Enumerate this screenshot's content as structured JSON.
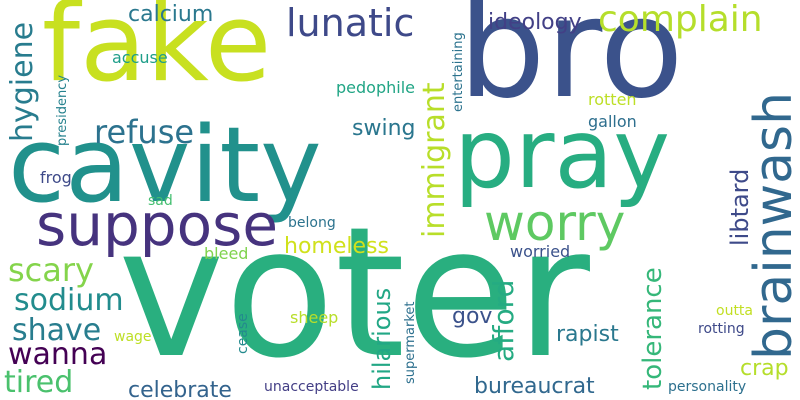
{
  "word_cloud": {
    "background": "#ffffff",
    "words": [
      {
        "text": "voter",
        "color": "#29af7f"
      },
      {
        "text": "bro",
        "color": "#3b528b"
      },
      {
        "text": "fake",
        "color": "#c8e020"
      },
      {
        "text": "cavity",
        "color": "#21918c"
      },
      {
        "text": "pray",
        "color": "#27ad81"
      },
      {
        "text": "suppose",
        "color": "#46337e"
      },
      {
        "text": "worry",
        "color": "#5ec962"
      },
      {
        "text": "brainwash",
        "color": "#31688e"
      },
      {
        "text": "complain",
        "color": "#b5de2b"
      },
      {
        "text": "lunatic",
        "color": "#3e4989"
      },
      {
        "text": "refuse",
        "color": "#2c728e"
      },
      {
        "text": "immigrant",
        "color": "#b8de29"
      },
      {
        "text": "hygiene",
        "color": "#287c8e"
      },
      {
        "text": "scary",
        "color": "#84d44b"
      },
      {
        "text": "sodium",
        "color": "#228c8d"
      },
      {
        "text": "shave",
        "color": "#287d8e"
      },
      {
        "text": "wanna",
        "color": "#440154"
      },
      {
        "text": "tired",
        "color": "#4ac16d"
      },
      {
        "text": "homeless",
        "color": "#d0e11c"
      },
      {
        "text": "afford",
        "color": "#25ab82"
      },
      {
        "text": "tolerance",
        "color": "#35b779"
      },
      {
        "text": "hilarious",
        "color": "#22a785"
      },
      {
        "text": "libtard",
        "color": "#3e4a89"
      },
      {
        "text": "celebrate",
        "color": "#33638d"
      },
      {
        "text": "ideology",
        "color": "#424086"
      },
      {
        "text": "calcium",
        "color": "#2a788e"
      },
      {
        "text": "swing",
        "color": "#2a768e"
      },
      {
        "text": "rapist",
        "color": "#2a788e"
      },
      {
        "text": "bureaucrat",
        "color": "#31688e"
      },
      {
        "text": "crap",
        "color": "#b5de2b"
      },
      {
        "text": "gov",
        "color": "#3b528b"
      },
      {
        "text": "accuse",
        "color": "#1f9e89"
      },
      {
        "text": "pedophile",
        "color": "#21a585"
      },
      {
        "text": "rotten",
        "color": "#bddf26"
      },
      {
        "text": "gallon",
        "color": "#2e6f8e"
      },
      {
        "text": "frog",
        "color": "#3e4a89"
      },
      {
        "text": "sad",
        "color": "#44bf70"
      },
      {
        "text": "belong",
        "color": "#2c738e"
      },
      {
        "text": "bleed",
        "color": "#7fd34e"
      },
      {
        "text": "worried",
        "color": "#3b528b"
      },
      {
        "text": "sheep",
        "color": "#b8de29"
      },
      {
        "text": "wage",
        "color": "#bddf26"
      },
      {
        "text": "cease",
        "color": "#238a8d"
      },
      {
        "text": "outta",
        "color": "#c2df23"
      },
      {
        "text": "rotting",
        "color": "#3e4989"
      },
      {
        "text": "personality",
        "color": "#2d708e"
      },
      {
        "text": "unacceptable",
        "color": "#433e85"
      },
      {
        "text": "supermarket",
        "color": "#2d708e"
      },
      {
        "text": "entertaining",
        "color": "#2c738e"
      },
      {
        "text": "presidency",
        "color": "#26828e"
      }
    ]
  }
}
